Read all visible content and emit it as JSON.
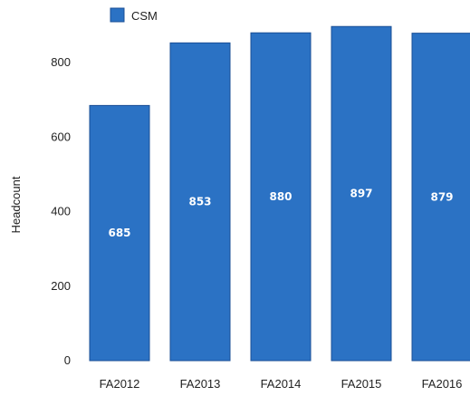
{
  "chart_data": {
    "type": "bar",
    "title": "",
    "xlabel": "",
    "ylabel": "Headcount",
    "categories": [
      "FA2012",
      "FA2013",
      "FA2014",
      "FA2015",
      "FA2016"
    ],
    "series": [
      {
        "name": "CSM",
        "values": [
          685,
          853,
          880,
          897,
          879
        ],
        "data_labels": [
          "685",
          "853",
          "880",
          "897",
          "879"
        ],
        "color": "#2b72c4",
        "edge_color": "#1a4f96"
      }
    ],
    "ylim": [
      0,
      900
    ],
    "yticks": [
      0,
      200,
      400,
      600,
      800
    ],
    "ytick_labels": [
      "0",
      "200",
      "400",
      "600",
      "800"
    ],
    "grid": false,
    "legend_position": "top-left"
  }
}
